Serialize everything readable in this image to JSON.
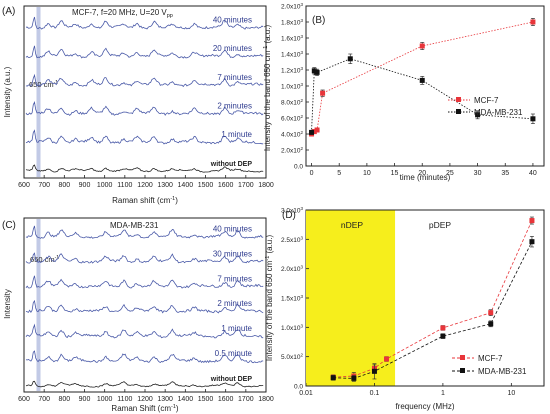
{
  "panels": {
    "A": {
      "label": "(A)",
      "header": "MCF-7, f=20 MHz, U=20 V",
      "header_sub": "pp",
      "peak_label": "650 cm",
      "peak_label_sup": "-1",
      "ylabel": "Intensity (a.u.)",
      "xlabel": "Raman shift (cm",
      "xlabel_tail": ")",
      "traces": [
        "40 minutes",
        "20 minutes",
        "7 minutes",
        "2 minutes",
        "1 minute",
        "without DEP"
      ]
    },
    "B": {
      "label": "(B)",
      "ylabel": "Intensity of the band 650 cm",
      "ylabel_tail": " (a.u.)",
      "xlabel": "time (minutes)",
      "legend": [
        "MCF-7",
        "MDA-MB-231"
      ]
    },
    "C": {
      "label": "(C)",
      "header": "MDA-MB-231",
      "peak_label": "650 cm",
      "peak_label_sup": "-1",
      "ylabel": "Intensity",
      "xlabel": "Raman Shift (cm",
      "xlabel_tail": ")",
      "traces": [
        "40 minutes",
        "30 minutes",
        "7 minutes",
        "2 minutes",
        "1 minute",
        "0.5 minute",
        "without DEP"
      ]
    },
    "D": {
      "label": "(D)",
      "ylabel": "Intensity of the band 650 cm",
      "ylabel_tail": " (a.u.)",
      "xlabel": "frequency (MHz)",
      "region_left": "nDEP",
      "region_right": "pDEP",
      "legend": [
        "MCF-7",
        "MDA-MB-231"
      ]
    }
  },
  "colors": {
    "spectrum": "#4a5aa8",
    "baseline": "#222222",
    "mcf7": "#e8353a",
    "mda": "#111111",
    "ndep": "#f6ee1c",
    "label": "#2f3c8f"
  },
  "chart_data": [
    {
      "panel": "A",
      "type": "line",
      "title": "MCF-7, f=20 MHz, U=20 Vpp",
      "xlabel": "Raman shift (cm-1)",
      "ylabel": "Intensity (a.u.)",
      "xlim": [
        600,
        1800
      ],
      "x_ticks": [
        600,
        700,
        800,
        900,
        1000,
        1100,
        1200,
        1300,
        1400,
        1500,
        1600,
        1700,
        1800
      ],
      "series": [
        {
          "name": "40 minutes"
        },
        {
          "name": "20 minutes"
        },
        {
          "name": "7 minutes"
        },
        {
          "name": "2 minutes"
        },
        {
          "name": "1 minute"
        },
        {
          "name": "without DEP"
        }
      ],
      "peaks": [
        650,
        720,
        785,
        855,
        935,
        1005,
        1095,
        1160,
        1245,
        1335,
        1445,
        1595,
        1660
      ]
    },
    {
      "panel": "B",
      "type": "line",
      "xlabel": "time (minutes)",
      "ylabel": "Intensity of the band 650 cm-1 (a.u.)",
      "xlim": [
        -1,
        42
      ],
      "ylim": [
        0,
        2000
      ],
      "x_ticks": [
        0,
        5,
        10,
        15,
        20,
        25,
        30,
        35,
        40
      ],
      "y_ticks": [
        "0.0",
        "2.0x10²",
        "4.0x10²",
        "6.0x10²",
        "8.0x10²",
        "1.0x10³",
        "1.2x10³",
        "1.4x10³",
        "1.6x10³",
        "1.8x10³",
        "2.0x10³"
      ],
      "legend": "center-right",
      "series": [
        {
          "name": "MCF-7",
          "x": [
            0,
            0.5,
            1,
            2,
            20,
            40
          ],
          "y": [
            400,
            430,
            450,
            910,
            1500,
            1800
          ],
          "err": [
            20,
            25,
            25,
            40,
            45,
            45
          ]
        },
        {
          "name": "MDA-MB-231",
          "x": [
            0,
            0.5,
            1,
            7,
            20,
            30,
            40
          ],
          "y": [
            420,
            1190,
            1170,
            1340,
            1070,
            640,
            590
          ],
          "err": [
            20,
            40,
            40,
            60,
            50,
            50,
            60
          ]
        }
      ]
    },
    {
      "panel": "C",
      "type": "line",
      "title": "MDA-MB-231",
      "xlabel": "Raman Shift (cm-1)",
      "ylabel": "Intensity",
      "xlim": [
        600,
        1800
      ],
      "x_ticks": [
        600,
        700,
        800,
        900,
        1000,
        1100,
        1200,
        1300,
        1400,
        1500,
        1600,
        1700,
        1800
      ],
      "series": [
        {
          "name": "40 minutes"
        },
        {
          "name": "30 minutes"
        },
        {
          "name": "7 minutes"
        },
        {
          "name": "2 minutes"
        },
        {
          "name": "1 minute"
        },
        {
          "name": "0.5 minute"
        },
        {
          "name": "without DEP"
        }
      ],
      "peaks": [
        650,
        720,
        785,
        855,
        1005,
        1095,
        1160,
        1245,
        1335,
        1445,
        1595,
        1660
      ]
    },
    {
      "panel": "D",
      "type": "line",
      "xlabel": "frequency (MHz)",
      "ylabel": "Intensity of the band 650 cm-1 (a.u.)",
      "x_scale": "log",
      "xlim": [
        0.01,
        30
      ],
      "ylim": [
        0,
        3000
      ],
      "x_ticks": [
        "0.01",
        "0.1",
        "1",
        "10"
      ],
      "y_ticks": [
        "0.0",
        "5.0x10²",
        "1.0x10³",
        "1.5x10³",
        "2.0x10³",
        "2.5x10³",
        "3.0x10³"
      ],
      "shaded_region": {
        "from": 0.01,
        "to": 0.2,
        "label": "nDEP"
      },
      "legend": "lower-right",
      "series": [
        {
          "name": "MCF-7",
          "x": [
            0.025,
            0.05,
            0.1,
            0.15,
            1,
            5,
            20
          ],
          "y": [
            150,
            170,
            300,
            460,
            990,
            1250,
            2820
          ],
          "err": [
            40,
            60,
            60,
            40,
            40,
            50,
            60
          ]
        },
        {
          "name": "MDA-MB-231",
          "x": [
            0.025,
            0.05,
            0.1,
            1,
            5,
            20
          ],
          "y": [
            140,
            130,
            250,
            850,
            1060,
            2460
          ],
          "err": [
            40,
            50,
            130,
            40,
            50,
            90
          ]
        }
      ]
    }
  ]
}
